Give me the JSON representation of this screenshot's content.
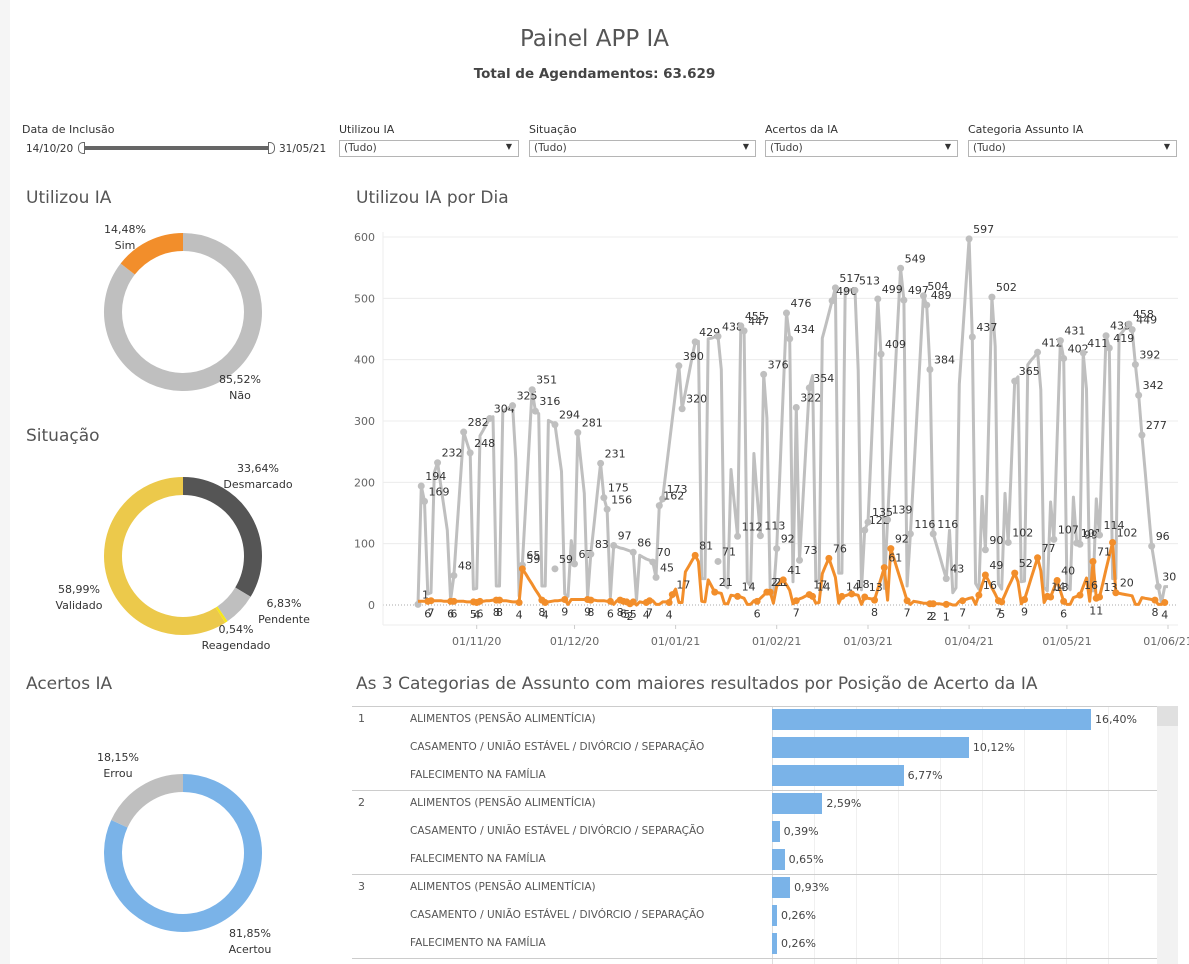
{
  "header": {
    "title": "Painel APP IA",
    "subtitle": "Total de Agendamentos: 63.629"
  },
  "filters": {
    "date": {
      "label": "Data de Inclusão",
      "start": "14/10/20",
      "end": "31/05/21"
    },
    "utilizou": {
      "label": "Utilizou IA",
      "value": "(Tudo)"
    },
    "situacao": {
      "label": "Situação",
      "value": "(Tudo)"
    },
    "acertos": {
      "label": "Acertos da IA",
      "value": "(Tudo)"
    },
    "categoria": {
      "label": "Categoria Assunto IA",
      "value": "(Tudo)"
    }
  },
  "colors": {
    "orange": "#f28e2b",
    "gray": "#bfbfbf",
    "dark": "#555555",
    "yellow": "#ecc94b",
    "bright_yellow": "#f5e71a",
    "blue": "#7ab3e8"
  },
  "chart_data": [
    {
      "type": "pie",
      "title": "Utilizou IA",
      "slices": [
        {
          "label": "Sim",
          "pct_text": "14,48%",
          "value": 14.48,
          "color": "#f28e2b"
        },
        {
          "label": "Não",
          "pct_text": "85,52%",
          "value": 85.52,
          "color": "#bfbfbf"
        }
      ]
    },
    {
      "type": "pie",
      "title": "Situação",
      "slices": [
        {
          "label": "Desmarcado",
          "pct_text": "33,64%",
          "value": 33.64,
          "color": "#555555"
        },
        {
          "label": "Pendente",
          "pct_text": "6,83%",
          "value": 6.83,
          "color": "#bfbfbf"
        },
        {
          "label": "Reagendado",
          "pct_text": "0,54%",
          "value": 0.54,
          "color": "#f5e71a"
        },
        {
          "label": "Validado",
          "pct_text": "58,99%",
          "value": 58.99,
          "color": "#ecc94b"
        }
      ]
    },
    {
      "type": "pie",
      "title": "Acertos IA",
      "slices": [
        {
          "label": "Acertou",
          "pct_text": "81,85%",
          "value": 81.85,
          "color": "#7ab3e8"
        },
        {
          "label": "Errou",
          "pct_text": "18,15%",
          "value": 18.15,
          "color": "#bfbfbf"
        }
      ]
    },
    {
      "type": "line",
      "title": "Utilizou IA por Dia",
      "x_start": "2020-10-14",
      "x_end": "2021-05-31",
      "ylim": [
        0,
        600
      ],
      "yticks": [
        "0",
        "100",
        "200",
        "300",
        "400",
        "500",
        "600"
      ],
      "xticks": [
        {
          "label": "01/11/20",
          "day": 18
        },
        {
          "label": "01/12/20",
          "day": 48
        },
        {
          "label": "01/01/21",
          "day": 79
        },
        {
          "label": "01/02/21",
          "day": 110
        },
        {
          "label": "01/03/21",
          "day": 138
        },
        {
          "label": "01/04/21",
          "day": 169
        },
        {
          "label": "01/05/21",
          "day": 199
        },
        {
          "label": "01/06/21",
          "day": 230
        }
      ],
      "series": [
        {
          "name": "Não",
          "color": "#bfbfbf",
          "labels": [
            {
              "day": 0,
              "value": 1
            },
            {
              "day": 1,
              "value": 194
            },
            {
              "day": 2,
              "value": 169
            },
            {
              "day": 6,
              "value": 232
            },
            {
              "day": 14,
              "value": 282
            },
            {
              "day": 16,
              "value": 248
            },
            {
              "day": 22,
              "value": 304
            },
            {
              "day": 29,
              "value": 325
            },
            {
              "day": 35,
              "value": 351
            },
            {
              "day": 36,
              "value": 316
            },
            {
              "day": 42,
              "value": 294
            },
            {
              "day": 49,
              "value": 281
            },
            {
              "day": 56,
              "value": 231
            },
            {
              "day": 57,
              "value": 175
            },
            {
              "day": 58,
              "value": 156
            },
            {
              "day": 11,
              "value": 48
            },
            {
              "day": 32,
              "value": 65
            },
            {
              "day": 42,
              "value": 59
            },
            {
              "day": 48,
              "value": 67
            },
            {
              "day": 53,
              "value": 83
            },
            {
              "day": 60,
              "value": 97
            },
            {
              "day": 66,
              "value": 86
            },
            {
              "day": 73,
              "value": 45
            },
            {
              "day": 75,
              "value": 173
            },
            {
              "day": 74,
              "value": 162
            },
            {
              "day": 80,
              "value": 390
            },
            {
              "day": 81,
              "value": 320
            },
            {
              "day": 85,
              "value": 429
            },
            {
              "day": 92,
              "value": 438
            },
            {
              "day": 99,
              "value": 455
            },
            {
              "day": 100,
              "value": 447
            },
            {
              "day": 106,
              "value": 376
            },
            {
              "day": 113,
              "value": 476
            },
            {
              "day": 114,
              "value": 434
            },
            {
              "day": 120,
              "value": 354
            },
            {
              "day": 116,
              "value": 322
            },
            {
              "day": 127,
              "value": 496
            },
            {
              "day": 128,
              "value": 517
            },
            {
              "day": 134,
              "value": 513
            },
            {
              "day": 141,
              "value": 499
            },
            {
              "day": 142,
              "value": 409
            },
            {
              "day": 148,
              "value": 549
            },
            {
              "day": 149,
              "value": 497
            },
            {
              "day": 155,
              "value": 504
            },
            {
              "day": 156,
              "value": 489
            },
            {
              "day": 157,
              "value": 384
            },
            {
              "day": 169,
              "value": 597
            },
            {
              "day": 170,
              "value": 437
            },
            {
              "day": 176,
              "value": 502
            },
            {
              "day": 183,
              "value": 365
            },
            {
              "day": 190,
              "value": 412
            },
            {
              "day": 197,
              "value": 431
            },
            {
              "day": 198,
              "value": 402
            },
            {
              "day": 204,
              "value": 411
            },
            {
              "day": 211,
              "value": 439
            },
            {
              "day": 212,
              "value": 419
            },
            {
              "day": 218,
              "value": 458
            },
            {
              "day": 219,
              "value": 449
            },
            {
              "day": 220,
              "value": 392
            },
            {
              "day": 221,
              "value": 342
            },
            {
              "day": 222,
              "value": 277
            },
            {
              "day": 225,
              "value": 96
            },
            {
              "day": 227,
              "value": 30
            },
            {
              "day": 72,
              "value": 70
            },
            {
              "day": 92,
              "value": 71
            },
            {
              "day": 98,
              "value": 112
            },
            {
              "day": 105,
              "value": 113
            },
            {
              "day": 110,
              "value": 92
            },
            {
              "day": 117,
              "value": 73
            },
            {
              "day": 137,
              "value": 122
            },
            {
              "day": 138,
              "value": 135
            },
            {
              "day": 144,
              "value": 139
            },
            {
              "day": 151,
              "value": 116
            },
            {
              "day": 158,
              "value": 116
            },
            {
              "day": 162,
              "value": 43
            },
            {
              "day": 174,
              "value": 90
            },
            {
              "day": 181,
              "value": 102
            },
            {
              "day": 195,
              "value": 107
            },
            {
              "day": 202,
              "value": 101
            },
            {
              "day": 203,
              "value": 99
            },
            {
              "day": 209,
              "value": 114
            }
          ]
        },
        {
          "name": "Sim",
          "color": "#f28e2b",
          "labels": [
            {
              "day": 3,
              "value": 6
            },
            {
              "day": 4,
              "value": 7
            },
            {
              "day": 10,
              "value": 6
            },
            {
              "day": 11,
              "value": 6
            },
            {
              "day": 17,
              "value": 5
            },
            {
              "day": 18,
              "value": 4
            },
            {
              "day": 19,
              "value": 6
            },
            {
              "day": 24,
              "value": 8
            },
            {
              "day": 25,
              "value": 8
            },
            {
              "day": 31,
              "value": 4
            },
            {
              "day": 32,
              "value": 59
            },
            {
              "day": 38,
              "value": 8
            },
            {
              "day": 39,
              "value": 4
            },
            {
              "day": 45,
              "value": 9
            },
            {
              "day": 52,
              "value": 9
            },
            {
              "day": 53,
              "value": 8
            },
            {
              "day": 59,
              "value": 6
            },
            {
              "day": 62,
              "value": 8
            },
            {
              "day": 63,
              "value": 6
            },
            {
              "day": 64,
              "value": 5
            },
            {
              "day": 65,
              "value": 2
            },
            {
              "day": 66,
              "value": 5
            },
            {
              "day": 70,
              "value": 4
            },
            {
              "day": 71,
              "value": 7
            },
            {
              "day": 77,
              "value": 4
            },
            {
              "day": 78,
              "value": 17
            },
            {
              "day": 85,
              "value": 81
            },
            {
              "day": 91,
              "value": 21
            },
            {
              "day": 98,
              "value": 14
            },
            {
              "day": 104,
              "value": 6
            },
            {
              "day": 107,
              "value": 21
            },
            {
              "day": 108,
              "value": 21
            },
            {
              "day": 112,
              "value": 41
            },
            {
              "day": 116,
              "value": 7
            },
            {
              "day": 120,
              "value": 17
            },
            {
              "day": 121,
              "value": 14
            },
            {
              "day": 126,
              "value": 76
            },
            {
              "day": 130,
              "value": 14
            },
            {
              "day": 133,
              "value": 18
            },
            {
              "day": 137,
              "value": 13
            },
            {
              "day": 140,
              "value": 8
            },
            {
              "day": 143,
              "value": 61
            },
            {
              "day": 145,
              "value": 92
            },
            {
              "day": 150,
              "value": 7
            },
            {
              "day": 157,
              "value": 2
            },
            {
              "day": 158,
              "value": 2
            },
            {
              "day": 162,
              "value": 1
            },
            {
              "day": 167,
              "value": 7
            },
            {
              "day": 172,
              "value": 16
            },
            {
              "day": 174,
              "value": 49
            },
            {
              "day": 178,
              "value": 7
            },
            {
              "day": 179,
              "value": 5
            },
            {
              "day": 183,
              "value": 52
            },
            {
              "day": 186,
              "value": 9
            },
            {
              "day": 190,
              "value": 77
            },
            {
              "day": 193,
              "value": 14
            },
            {
              "day": 194,
              "value": 13
            },
            {
              "day": 196,
              "value": 40
            },
            {
              "day": 198,
              "value": 6
            },
            {
              "day": 203,
              "value": 16
            },
            {
              "day": 207,
              "value": 71
            },
            {
              "day": 208,
              "value": 11
            },
            {
              "day": 209,
              "value": 13
            },
            {
              "day": 213,
              "value": 102
            },
            {
              "day": 214,
              "value": 20
            },
            {
              "day": 226,
              "value": 8
            },
            {
              "day": 229,
              "value": 4
            }
          ]
        }
      ]
    },
    {
      "type": "bar",
      "title": "As 3 Categorias de Assunto com maiores resultados por Posição de Acerto da IA",
      "groups": [
        {
          "rank": "1",
          "rows": [
            {
              "category": "ALIMENTOS (PENSÃO ALIMENTÍCIA)",
              "value": 16.4,
              "label": "16,40%"
            },
            {
              "category": "CASAMENTO / UNIÃO ESTÁVEL / DIVÓRCIO / SEPARAÇÃO",
              "value": 10.12,
              "label": "10,12%"
            },
            {
              "category": "FALECIMENTO NA FAMÍLIA",
              "value": 6.77,
              "label": "6,77%"
            }
          ]
        },
        {
          "rank": "2",
          "rows": [
            {
              "category": "ALIMENTOS (PENSÃO ALIMENTÍCIA)",
              "value": 2.59,
              "label": "2,59%"
            },
            {
              "category": "CASAMENTO / UNIÃO ESTÁVEL / DIVÓRCIO / SEPARAÇÃO",
              "value": 0.39,
              "label": "0,39%"
            },
            {
              "category": "FALECIMENTO NA FAMÍLIA",
              "value": 0.65,
              "label": "0,65%"
            }
          ]
        },
        {
          "rank": "3",
          "rows": [
            {
              "category": "ALIMENTOS (PENSÃO ALIMENTÍCIA)",
              "value": 0.93,
              "label": "0,93%"
            },
            {
              "category": "CASAMENTO / UNIÃO ESTÁVEL / DIVÓRCIO / SEPARAÇÃO",
              "value": 0.26,
              "label": "0,26%"
            },
            {
              "category": "FALECIMENTO NA FAMÍLIA",
              "value": 0.26,
              "label": "0,26%"
            }
          ]
        }
      ],
      "xlim": [
        0,
        20
      ]
    }
  ]
}
